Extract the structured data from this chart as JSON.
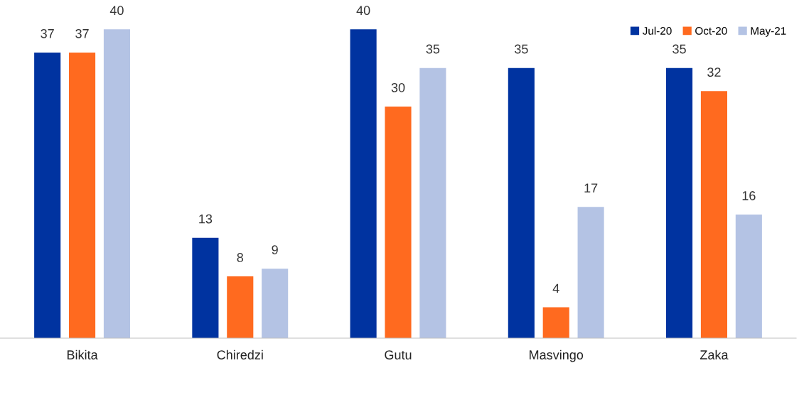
{
  "chart_data": {
    "type": "bar",
    "categories": [
      "Bikita",
      "Chiredzi",
      "Gutu",
      "Masvingo",
      "Zaka"
    ],
    "series": [
      {
        "name": "Jul-20",
        "color": "#0033a0",
        "values": [
          37,
          13,
          40,
          35,
          35
        ]
      },
      {
        "name": "Oct-20",
        "color": "#ff6a1f",
        "values": [
          37,
          8,
          30,
          4,
          32
        ]
      },
      {
        "name": "May-21",
        "color": "#b4c3e4",
        "values": [
          40,
          9,
          35,
          17,
          16
        ]
      }
    ],
    "data_labels": true,
    "legend": "top right",
    "grid": false
  }
}
